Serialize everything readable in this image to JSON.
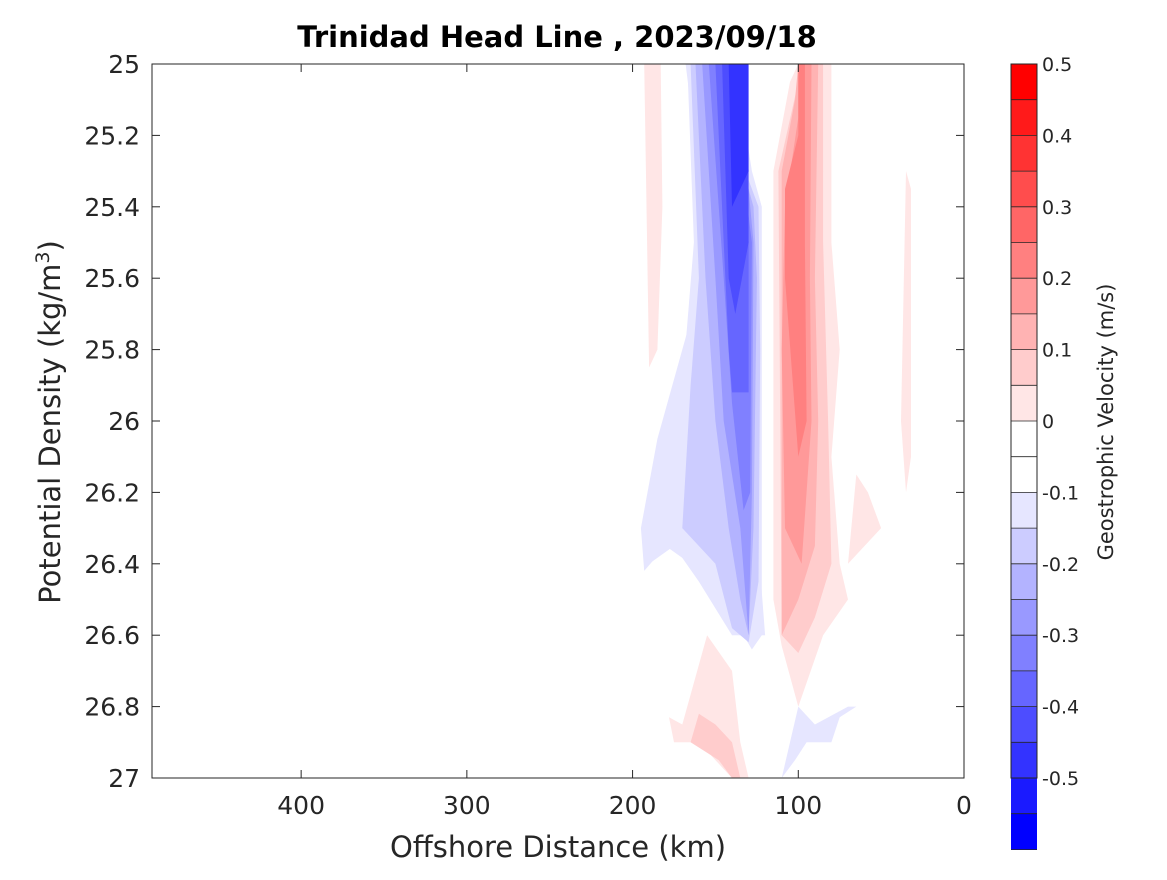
{
  "chart_data": {
    "type": "contour",
    "title": "Trinidad Head Line , 2023/09/18",
    "xlabel": "Offshore Distance (km)",
    "ylabel_main": "Potential Density (kg/m",
    "ylabel_sup": "3",
    "ylabel_end": ")",
    "xlim": [
      490,
      0
    ],
    "ylim": [
      25,
      27
    ],
    "x_ticks": [
      400,
      300,
      200,
      100,
      0
    ],
    "x_tick_labels": [
      "400",
      "300",
      "200",
      "100",
      "0"
    ],
    "y_ticks": [
      25,
      25.2,
      25.4,
      25.6,
      25.8,
      26,
      26.2,
      26.4,
      26.6,
      26.8,
      27
    ],
    "y_tick_labels": [
      "25",
      "25.2",
      "25.4",
      "25.6",
      "25.8",
      "26",
      "26.2",
      "26.4",
      "26.6",
      "26.8",
      "27"
    ],
    "grid": false,
    "colorbar": {
      "label": "Geostrophic Velocity (m/s)",
      "range": [
        -0.5,
        0.5
      ],
      "step": 0.05,
      "tick_values": [
        0.5,
        0.4,
        0.3,
        0.2,
        0.1,
        0,
        -0.1,
        -0.2,
        -0.3,
        -0.4,
        -0.5
      ],
      "tick_labels": [
        "0.5",
        "0.4",
        "0.3",
        "0.2",
        "0.1",
        "0",
        "-0.1",
        "-0.2",
        "-0.3",
        "-0.4",
        "-0.5"
      ],
      "colors_top_to_bottom": [
        "#ff0000",
        "#ff1a1a",
        "#ff3333",
        "#ff4d4d",
        "#ff6666",
        "#ff8080",
        "#ff9999",
        "#ffb3b3",
        "#ffcccc",
        "#ffe6e6",
        "#ffffff",
        "#ffffff",
        "#e6e6ff",
        "#ccccff",
        "#b3b3ff",
        "#9999ff",
        "#8080ff",
        "#6666ff",
        "#4d4dff",
        "#3333ff",
        "#1a1aff",
        "#0000ff"
      ]
    },
    "regions": [
      {
        "name": "positive-offshore",
        "value": 0.025,
        "color": "#ffe6e6",
        "points": [
          [
            193,
            25
          ],
          [
            183,
            25
          ],
          [
            182,
            25.4
          ],
          [
            185,
            25.8
          ],
          [
            190,
            25.85
          ]
        ]
      },
      {
        "name": "negative-core-0",
        "value": -0.025,
        "color": "#e6e6ff",
        "points": [
          [
            167,
            25
          ],
          [
            163,
            25.5
          ],
          [
            170,
            25.9
          ],
          [
            180,
            26.15
          ],
          [
            190,
            26.4
          ],
          [
            175,
            26.35
          ],
          [
            160,
            26.45
          ],
          [
            140,
            26.6
          ],
          [
            120,
            26.6
          ],
          [
            125,
            26.3
          ],
          [
            125,
            25.6
          ],
          [
            135,
            25.45
          ],
          [
            140,
            25.3
          ],
          [
            145,
            25
          ]
        ]
      },
      {
        "name": "negative-outer",
        "value": -0.075,
        "color": "#e6e6ff",
        "points": [
          [
            168,
            25
          ],
          [
            160,
            25.3
          ],
          [
            158,
            25.6
          ],
          [
            170,
            25.8
          ],
          [
            185,
            26.05
          ],
          [
            195,
            26.3
          ],
          [
            193,
            26.42
          ],
          [
            180,
            26.35
          ],
          [
            165,
            26.4
          ],
          [
            148,
            26.5
          ],
          [
            133,
            26.6
          ],
          [
            128,
            26.64
          ],
          [
            122,
            26.6
          ],
          [
            122,
            26.3
          ],
          [
            122,
            25.8
          ],
          [
            122,
            25.4
          ],
          [
            128,
            25.3
          ],
          [
            138,
            25
          ]
        ]
      },
      {
        "name": "negative-1",
        "value": -0.125,
        "color": "#ccccff",
        "points": [
          [
            165,
            25
          ],
          [
            160,
            25.6
          ],
          [
            165,
            25.9
          ],
          [
            170,
            26.3
          ],
          [
            150,
            26.4
          ],
          [
            140,
            26.58
          ],
          [
            130,
            26.62
          ],
          [
            124,
            26.45
          ],
          [
            123,
            25.8
          ],
          [
            124,
            25.4
          ],
          [
            132,
            25.3
          ],
          [
            140,
            25
          ]
        ]
      },
      {
        "name": "negative-2",
        "value": -0.175,
        "color": "#b3b3ff",
        "points": [
          [
            162,
            25
          ],
          [
            156,
            25.6
          ],
          [
            150,
            26
          ],
          [
            142,
            26.3
          ],
          [
            135,
            26.5
          ],
          [
            130,
            26.6
          ],
          [
            127,
            26.3
          ],
          [
            125,
            25.6
          ],
          [
            127,
            25.4
          ],
          [
            133,
            25.3
          ],
          [
            140,
            25
          ]
        ]
      },
      {
        "name": "negative-3",
        "value": -0.225,
        "color": "#9999ff",
        "points": [
          [
            158,
            25
          ],
          [
            150,
            25.6
          ],
          [
            145,
            26
          ],
          [
            135,
            26.3
          ],
          [
            130,
            26.6
          ],
          [
            128,
            26.2
          ],
          [
            127,
            25.5
          ],
          [
            130,
            25.35
          ],
          [
            137,
            25
          ]
        ]
      },
      {
        "name": "negative-4",
        "value": -0.275,
        "color": "#8080ff",
        "points": [
          [
            154,
            25
          ],
          [
            145,
            25.6
          ],
          [
            140,
            25.95
          ],
          [
            133,
            26.25
          ],
          [
            129,
            26.2
          ],
          [
            128,
            25.5
          ],
          [
            132,
            25.35
          ],
          [
            136,
            25
          ]
        ]
      },
      {
        "name": "negative-5",
        "value": -0.325,
        "color": "#6666ff",
        "points": [
          [
            150,
            25
          ],
          [
            142,
            25.8
          ],
          [
            140,
            25.92
          ],
          [
            130,
            25.92
          ],
          [
            130,
            25.5
          ],
          [
            132,
            25.35
          ],
          [
            136,
            25
          ]
        ]
      },
      {
        "name": "negative-6",
        "value": -0.375,
        "color": "#4d4dff",
        "points": [
          [
            146,
            25
          ],
          [
            142,
            25.6
          ],
          [
            138,
            25.7
          ],
          [
            130,
            25.5
          ],
          [
            130,
            25.3
          ],
          [
            133,
            25
          ]
        ]
      },
      {
        "name": "negative-7",
        "value": -0.425,
        "color": "#3333ff",
        "points": [
          [
            142,
            25
          ],
          [
            140,
            25.4
          ],
          [
            130,
            25.3
          ],
          [
            130,
            25
          ]
        ]
      },
      {
        "name": "positive-core-0",
        "value": 0.025,
        "color": "#ffe6e6",
        "points": [
          [
            115,
            25.3
          ],
          [
            105,
            25.05
          ],
          [
            100,
            25
          ],
          [
            80,
            25
          ],
          [
            80,
            25.5
          ],
          [
            75,
            25.8
          ],
          [
            80,
            26.1
          ],
          [
            75,
            26.4
          ],
          [
            70,
            26.5
          ],
          [
            85,
            26.6
          ],
          [
            100,
            26.8
          ],
          [
            110,
            26.63
          ],
          [
            115,
            26.5
          ]
        ]
      },
      {
        "name": "positive-1",
        "value": 0.075,
        "color": "#ffcccc",
        "points": [
          [
            112,
            25.3
          ],
          [
            100,
            25.05
          ],
          [
            100,
            25
          ],
          [
            85,
            25
          ],
          [
            85,
            25.5
          ],
          [
            82,
            26
          ],
          [
            80,
            26.4
          ],
          [
            90,
            26.55
          ],
          [
            100,
            26.65
          ],
          [
            110,
            26.6
          ]
        ]
      },
      {
        "name": "positive-2",
        "value": 0.125,
        "color": "#ffb3b3",
        "points": [
          [
            110,
            25.3
          ],
          [
            102,
            25.1
          ],
          [
            100,
            25
          ],
          [
            88,
            25
          ],
          [
            90,
            25.6
          ],
          [
            88,
            26
          ],
          [
            90,
            26.35
          ],
          [
            100,
            26.5
          ],
          [
            110,
            26.6
          ]
        ]
      },
      {
        "name": "positive-3",
        "value": 0.175,
        "color": "#ff9999",
        "points": [
          [
            108,
            25.4
          ],
          [
            100,
            25.15
          ],
          [
            100,
            25
          ],
          [
            92,
            25
          ],
          [
            93,
            25.6
          ],
          [
            92,
            26
          ],
          [
            98,
            26.4
          ],
          [
            108,
            26.3
          ],
          [
            110,
            25.8
          ]
        ]
      },
      {
        "name": "positive-4",
        "value": 0.225,
        "color": "#ff8080",
        "points": [
          [
            108,
            25.35
          ],
          [
            100,
            25.2
          ],
          [
            100,
            25
          ],
          [
            96,
            25
          ],
          [
            96,
            25.5
          ],
          [
            95,
            26
          ],
          [
            100,
            26.1
          ],
          [
            108,
            25.6
          ]
        ]
      },
      {
        "name": "positive-shore-strip",
        "value": 0.025,
        "color": "#ffe6e6",
        "points": [
          [
            35,
            25.3
          ],
          [
            32,
            25.35
          ],
          [
            32,
            26.1
          ],
          [
            35,
            26.2
          ],
          [
            38,
            26
          ]
        ]
      },
      {
        "name": "positive-shore-patch",
        "value": 0.025,
        "color": "#ffe6e6",
        "points": [
          [
            65,
            26.15
          ],
          [
            70,
            26.4
          ],
          [
            50,
            26.3
          ],
          [
            58,
            26.2
          ]
        ]
      },
      {
        "name": "positive-deep",
        "value": 0.025,
        "color": "#ffe6e6",
        "points": [
          [
            170,
            26.85
          ],
          [
            155,
            26.6
          ],
          [
            140,
            26.7
          ],
          [
            135,
            26.9
          ],
          [
            130,
            27
          ],
          [
            140,
            27
          ],
          [
            160,
            26.9
          ],
          [
            175,
            26.9
          ],
          [
            178,
            26.83
          ]
        ]
      },
      {
        "name": "positive-deep-1",
        "value": 0.075,
        "color": "#ffcccc",
        "points": [
          [
            160,
            26.82
          ],
          [
            150,
            26.85
          ],
          [
            140,
            26.9
          ],
          [
            135,
            27
          ],
          [
            140,
            27
          ],
          [
            148,
            26.95
          ],
          [
            165,
            26.9
          ]
        ]
      },
      {
        "name": "negative-deep",
        "value": -0.025,
        "color": "#e6e6ff",
        "points": [
          [
            110,
            27
          ],
          [
            100,
            26.8
          ],
          [
            90,
            26.85
          ],
          [
            70,
            26.8
          ],
          [
            65,
            26.8
          ],
          [
            75,
            26.83
          ],
          [
            80,
            26.9
          ],
          [
            95,
            26.9
          ],
          [
            102,
            26.95
          ]
        ]
      }
    ]
  }
}
